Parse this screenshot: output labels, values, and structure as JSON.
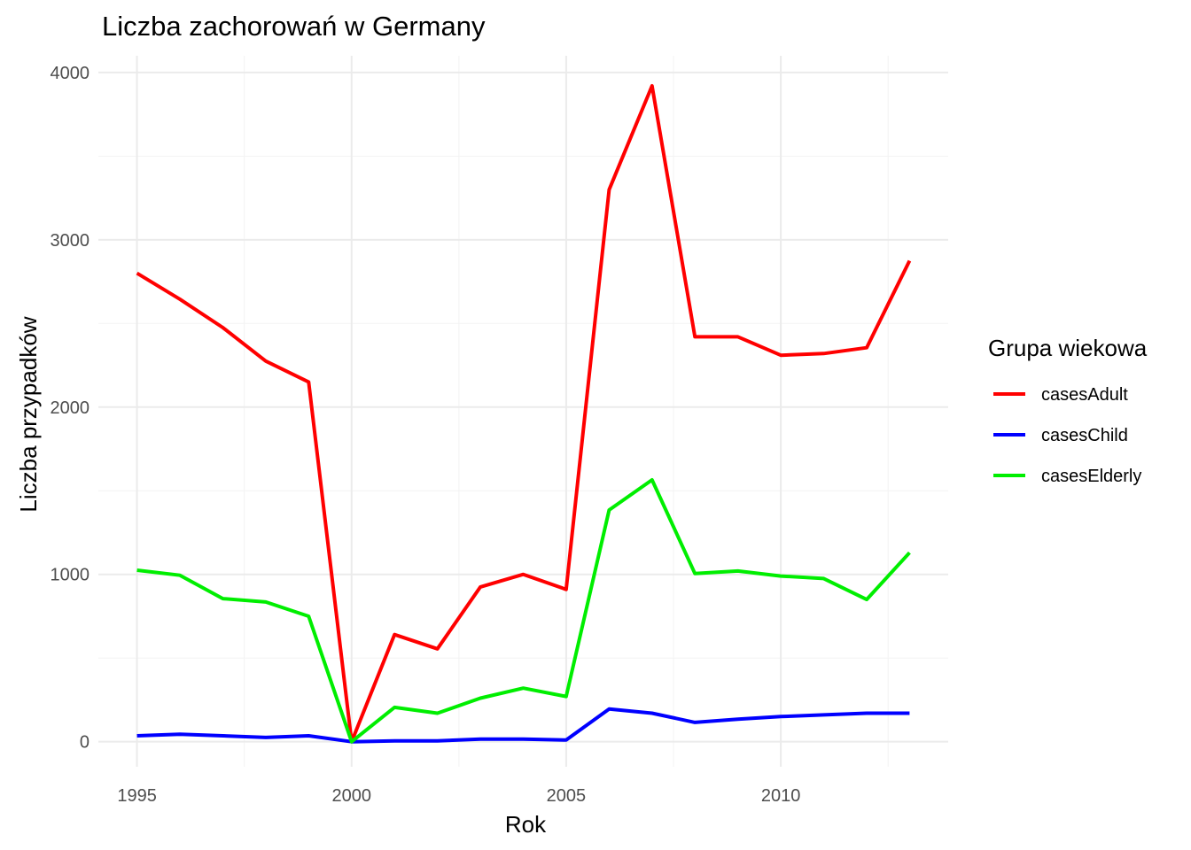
{
  "chart_data": {
    "type": "line",
    "title": "Liczba zachorowań w Germany",
    "xlabel": "Rok",
    "ylabel": "Liczba przypadków",
    "xlim": [
      1994.1,
      2013.9
    ],
    "ylim": [
      -150,
      4100
    ],
    "x_ticks": [
      1995,
      2000,
      2005,
      2010
    ],
    "y_ticks": [
      0,
      1000,
      2000,
      3000,
      4000
    ],
    "x_minor": [
      1997.5,
      2002.5,
      2007.5,
      2012.5
    ],
    "y_minor": [
      500,
      1500,
      2500,
      3500
    ],
    "grid": true,
    "legend": {
      "title": "Grupa wiekowa",
      "position": "right"
    },
    "x": [
      1995,
      1996,
      1997,
      1998,
      1999,
      2000,
      2001,
      2002,
      2003,
      2004,
      2005,
      2006,
      2007,
      2008,
      2009,
      2010,
      2011,
      2012,
      2013
    ],
    "series": [
      {
        "name": "casesAdult",
        "color": "#ff0000",
        "values": [
          2800,
          2645,
          2475,
          2275,
          2150,
          0,
          640,
          555,
          925,
          1000,
          910,
          3300,
          3920,
          2420,
          2420,
          2310,
          2320,
          2355,
          2875
        ]
      },
      {
        "name": "casesChild",
        "color": "#0000ff",
        "values": [
          35,
          45,
          35,
          25,
          35,
          0,
          5,
          5,
          15,
          15,
          10,
          195,
          170,
          115,
          135,
          150,
          160,
          170,
          170
        ]
      },
      {
        "name": "casesElderly",
        "color": "#00ee00",
        "values": [
          1025,
          995,
          855,
          835,
          750,
          0,
          205,
          170,
          260,
          320,
          270,
          1385,
          1565,
          1005,
          1020,
          990,
          975,
          850,
          1130
        ]
      }
    ]
  }
}
